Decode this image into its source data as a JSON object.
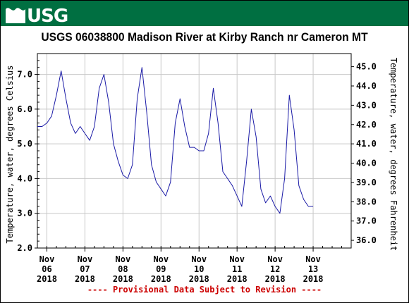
{
  "header": {
    "logo_text": "USGS",
    "banner_color": "#006f41",
    "logo_name": "usgs-logo"
  },
  "chart_data": {
    "type": "line",
    "title": "USGS 06038800 Madison River at Kirby Ranch nr Cameron MT",
    "ylabel": "Temperature, water, degrees Celsius",
    "y2label": "Temperature, water, degrees Fahrenheit",
    "ylim": [
      2.0,
      7.6
    ],
    "y2lim": [
      35.6,
      45.68
    ],
    "yticks": [
      "2.0",
      "3.0",
      "4.0",
      "5.0",
      "6.0",
      "7.0"
    ],
    "y2ticks": [
      "36.0",
      "37.0",
      "38.0",
      "39.0",
      "40.0",
      "41.0",
      "42.0",
      "43.0",
      "44.0",
      "45.0"
    ],
    "xlim": [
      "2018-11-05 18:00",
      "2018-11-14 00:00"
    ],
    "xticks": [
      {
        "label": [
          "Nov",
          "06",
          "2018"
        ],
        "date": "2018-11-06"
      },
      {
        "label": [
          "Nov",
          "07",
          "2018"
        ],
        "date": "2018-11-07"
      },
      {
        "label": [
          "Nov",
          "08",
          "2018"
        ],
        "date": "2018-11-08"
      },
      {
        "label": [
          "Nov",
          "09",
          "2018"
        ],
        "date": "2018-11-09"
      },
      {
        "label": [
          "Nov",
          "10",
          "2018"
        ],
        "date": "2018-11-10"
      },
      {
        "label": [
          "Nov",
          "11",
          "2018"
        ],
        "date": "2018-11-11"
      },
      {
        "label": [
          "Nov",
          "12",
          "2018"
        ],
        "date": "2018-11-12"
      },
      {
        "label": [
          "Nov",
          "13",
          "2018"
        ],
        "date": "2018-11-13"
      }
    ],
    "grid": true,
    "line_color": "#1a1aa6",
    "series": [
      {
        "x": [
          "2018-11-05 18:00",
          "2018-11-05 21:00",
          "2018-11-06 00:00",
          "2018-11-06 03:00",
          "2018-11-06 06:00",
          "2018-11-06 09:00",
          "2018-11-06 12:00",
          "2018-11-06 15:00",
          "2018-11-06 18:00",
          "2018-11-06 21:00",
          "2018-11-07 00:00",
          "2018-11-07 03:00",
          "2018-11-07 06:00",
          "2018-11-07 09:00",
          "2018-11-07 12:00",
          "2018-11-07 15:00",
          "2018-11-07 18:00",
          "2018-11-07 21:00",
          "2018-11-08 00:00",
          "2018-11-08 03:00",
          "2018-11-08 06:00",
          "2018-11-08 09:00",
          "2018-11-08 12:00",
          "2018-11-08 15:00",
          "2018-11-08 18:00",
          "2018-11-08 21:00",
          "2018-11-09 00:00",
          "2018-11-09 03:00",
          "2018-11-09 06:00",
          "2018-11-09 09:00",
          "2018-11-09 12:00",
          "2018-11-09 15:00",
          "2018-11-09 18:00",
          "2018-11-09 21:00",
          "2018-11-10 00:00",
          "2018-11-10 03:00",
          "2018-11-10 06:00",
          "2018-11-10 09:00",
          "2018-11-10 12:00",
          "2018-11-10 15:00",
          "2018-11-10 18:00",
          "2018-11-10 21:00",
          "2018-11-11 00:00",
          "2018-11-11 03:00",
          "2018-11-11 06:00",
          "2018-11-11 09:00",
          "2018-11-11 12:00",
          "2018-11-11 15:00",
          "2018-11-11 18:00",
          "2018-11-11 21:00",
          "2018-11-12 00:00",
          "2018-11-12 03:00",
          "2018-11-12 06:00",
          "2018-11-12 09:00",
          "2018-11-12 12:00",
          "2018-11-12 15:00",
          "2018-11-12 18:00",
          "2018-11-12 21:00",
          "2018-11-13 00:00"
        ],
        "values": [
          5.5,
          5.5,
          5.6,
          5.8,
          6.4,
          7.1,
          6.3,
          5.6,
          5.3,
          5.5,
          5.3,
          5.1,
          5.5,
          6.6,
          7.0,
          6.2,
          5.0,
          4.5,
          4.1,
          4.0,
          4.4,
          6.3,
          7.2,
          5.9,
          4.4,
          3.9,
          3.7,
          3.5,
          3.9,
          5.6,
          6.3,
          5.5,
          4.9,
          4.9,
          4.8,
          4.8,
          5.3,
          6.6,
          5.6,
          4.2,
          4.0,
          3.8,
          3.5,
          3.2,
          4.5,
          6.0,
          5.2,
          3.7,
          3.3,
          3.5,
          3.2,
          3.0,
          4.0,
          6.4,
          5.4,
          3.8,
          3.4,
          3.2,
          3.2
        ]
      }
    ]
  },
  "footer": {
    "text": "---- Provisional Data Subject to Revision ----"
  }
}
